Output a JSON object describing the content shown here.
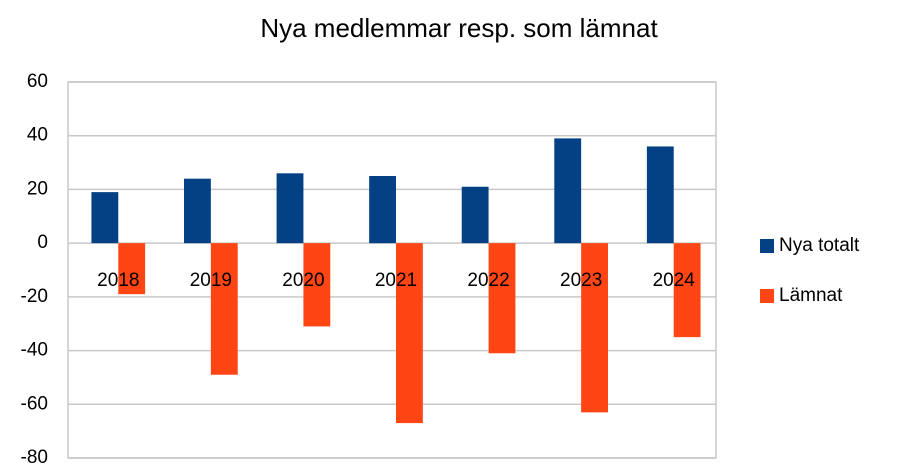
{
  "chart_data": {
    "type": "bar",
    "title": "Nya medlemmar resp. som lämnat",
    "categories": [
      "2018",
      "2019",
      "2020",
      "2021",
      "2022",
      "2023",
      "2024"
    ],
    "series": [
      {
        "name": "Nya totalt",
        "color": "#044184",
        "values": [
          19,
          24,
          26,
          25,
          21,
          39,
          36
        ]
      },
      {
        "name": "Lämnat",
        "color": "#ff4513",
        "values": [
          -19,
          -49,
          -31,
          -67,
          -41,
          -63,
          -35
        ]
      }
    ],
    "ylim": [
      -80,
      60
    ],
    "yticks": [
      -80,
      -60,
      -40,
      -20,
      0,
      20,
      40,
      60
    ],
    "grid": true,
    "legend": "right"
  }
}
